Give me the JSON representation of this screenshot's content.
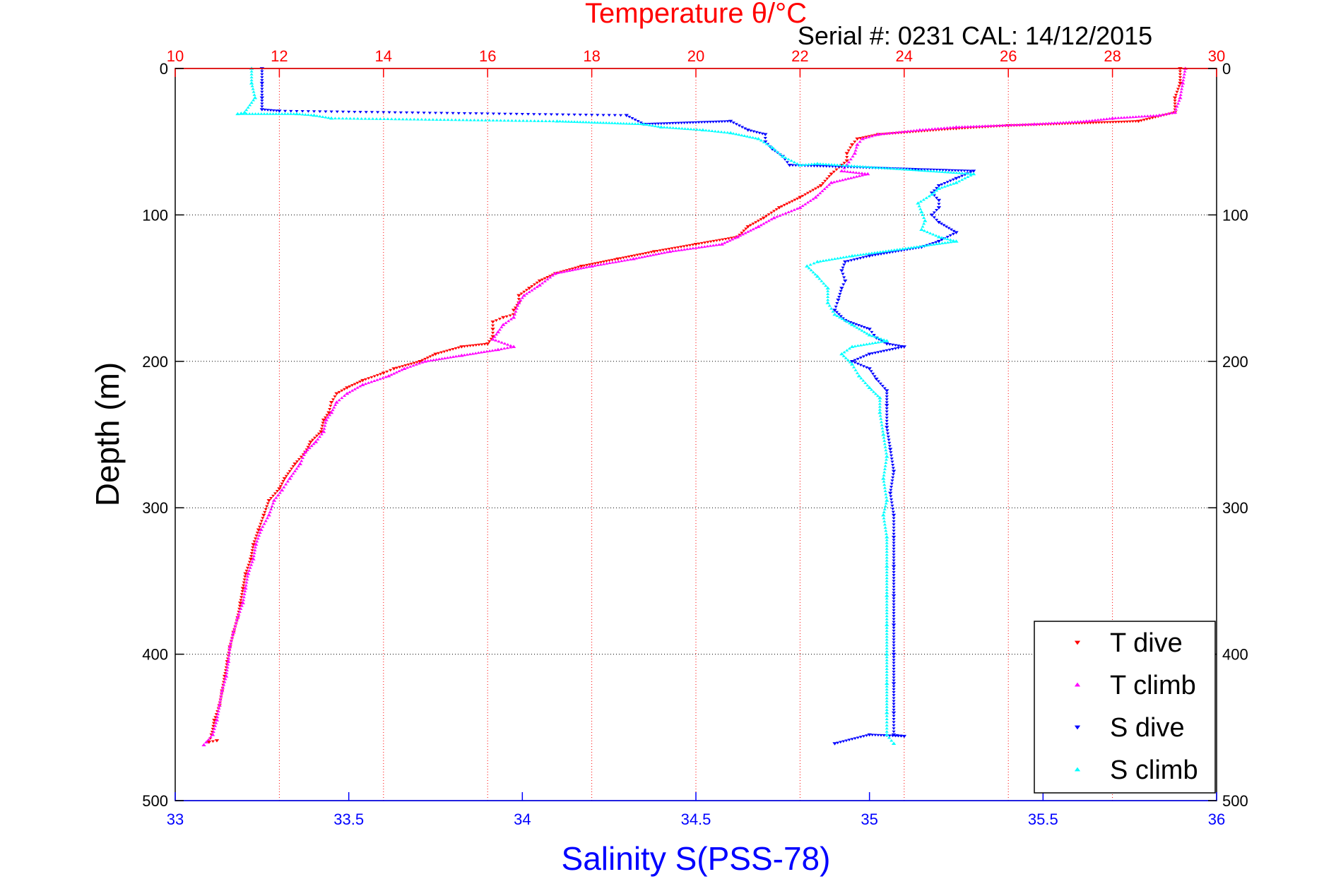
{
  "chart_data": {
    "type": "scatter",
    "title": "Temperature θ/°C",
    "subtitle": "Serial #: 0231  CAL: 14/12/2015",
    "xlabel": "Salinity S(PSS-78)",
    "ylabel": "Depth (m)",
    "legend_position": "bottom-right",
    "grid": true,
    "xlim": [
      33,
      36
    ],
    "x2lim": [
      10,
      30
    ],
    "ylim": [
      0,
      500
    ],
    "x_ticks": [
      "33",
      "33.5",
      "34",
      "34.5",
      "35",
      "35.5",
      "36"
    ],
    "x2_ticks": [
      "10",
      "12",
      "14",
      "16",
      "18",
      "20",
      "22",
      "24",
      "26",
      "28",
      "30"
    ],
    "y_ticks": [
      "0",
      "100",
      "200",
      "300",
      "400",
      "500"
    ],
    "colors": {
      "temperature_axis": "#ff0000",
      "salinity_axis": "#0000ff"
    },
    "series": [
      {
        "name": "T dive",
        "axis": "temperature",
        "color": "#ff0000",
        "marker": "triangle-down",
        "points": [
          [
            29.3,
            0
          ],
          [
            29.3,
            10
          ],
          [
            29.2,
            20
          ],
          [
            29.2,
            30
          ],
          [
            28.5,
            36
          ],
          [
            26.0,
            39
          ],
          [
            25.0,
            41
          ],
          [
            23.5,
            45
          ],
          [
            23.1,
            48
          ],
          [
            23.0,
            52
          ],
          [
            22.9,
            58
          ],
          [
            22.9,
            63
          ],
          [
            22.8,
            66
          ],
          [
            22.6,
            72
          ],
          [
            22.4,
            80
          ],
          [
            22.0,
            88
          ],
          [
            21.6,
            95
          ],
          [
            21.3,
            102
          ],
          [
            21.0,
            108
          ],
          [
            20.8,
            115
          ],
          [
            20.0,
            120
          ],
          [
            19.2,
            125
          ],
          [
            18.5,
            130
          ],
          [
            17.8,
            135
          ],
          [
            17.3,
            140
          ],
          [
            17.0,
            145
          ],
          [
            16.8,
            150
          ],
          [
            16.6,
            155
          ],
          [
            16.6,
            160
          ],
          [
            16.5,
            165
          ],
          [
            16.5,
            168
          ],
          [
            16.3,
            170
          ],
          [
            16.1,
            173
          ],
          [
            16.1,
            178
          ],
          [
            16.1,
            183
          ],
          [
            16.0,
            188
          ],
          [
            15.5,
            190
          ],
          [
            15.0,
            195
          ],
          [
            14.7,
            200
          ],
          [
            14.2,
            205
          ],
          [
            14.0,
            208
          ],
          [
            13.6,
            213
          ],
          [
            13.3,
            218
          ],
          [
            13.1,
            222
          ],
          [
            13.0,
            228
          ],
          [
            12.95,
            235
          ],
          [
            12.85,
            240
          ],
          [
            12.8,
            248
          ],
          [
            12.6,
            255
          ],
          [
            12.5,
            262
          ],
          [
            12.3,
            270
          ],
          [
            12.1,
            280
          ],
          [
            12.0,
            287
          ],
          [
            11.8,
            295
          ],
          [
            11.7,
            305
          ],
          [
            11.6,
            315
          ],
          [
            11.5,
            325
          ],
          [
            11.45,
            335
          ],
          [
            11.35,
            345
          ],
          [
            11.3,
            355
          ],
          [
            11.25,
            365
          ],
          [
            11.2,
            375
          ],
          [
            11.12,
            385
          ],
          [
            11.05,
            395
          ],
          [
            11.0,
            405
          ],
          [
            10.95,
            415
          ],
          [
            10.9,
            425
          ],
          [
            10.85,
            435
          ],
          [
            10.75,
            445
          ],
          [
            10.7,
            455
          ],
          [
            10.65,
            460
          ],
          [
            10.8,
            459
          ]
        ]
      },
      {
        "name": "T climb",
        "axis": "temperature",
        "color": "#ff00ff",
        "marker": "triangle-up",
        "points": [
          [
            29.4,
            0
          ],
          [
            29.35,
            10
          ],
          [
            29.3,
            20
          ],
          [
            29.2,
            30
          ],
          [
            28.9,
            32
          ],
          [
            28.0,
            34
          ],
          [
            27.5,
            36
          ],
          [
            26.5,
            38
          ],
          [
            25.0,
            40
          ],
          [
            24.3,
            42
          ],
          [
            23.5,
            45
          ],
          [
            23.2,
            48
          ],
          [
            23.1,
            52
          ],
          [
            23.05,
            58
          ],
          [
            22.9,
            66
          ],
          [
            22.8,
            70
          ],
          [
            23.3,
            72
          ],
          [
            22.6,
            78
          ],
          [
            22.3,
            88
          ],
          [
            22.0,
            95
          ],
          [
            21.5,
            102
          ],
          [
            21.2,
            108
          ],
          [
            20.8,
            115
          ],
          [
            20.5,
            120
          ],
          [
            19.5,
            125
          ],
          [
            18.8,
            130
          ],
          [
            18.0,
            135
          ],
          [
            17.3,
            140
          ],
          [
            17.0,
            148
          ],
          [
            16.7,
            155
          ],
          [
            16.6,
            160
          ],
          [
            16.5,
            170
          ],
          [
            16.3,
            175
          ],
          [
            16.2,
            180
          ],
          [
            16.1,
            185
          ],
          [
            16.5,
            190
          ],
          [
            16.2,
            192
          ],
          [
            15.5,
            196
          ],
          [
            14.8,
            200
          ],
          [
            14.4,
            205
          ],
          [
            14.1,
            210
          ],
          [
            13.6,
            216
          ],
          [
            13.3,
            222
          ],
          [
            13.1,
            228
          ],
          [
            13.0,
            235
          ],
          [
            12.9,
            240
          ],
          [
            12.85,
            248
          ],
          [
            12.7,
            255
          ],
          [
            12.5,
            262
          ],
          [
            12.4,
            270
          ],
          [
            12.2,
            280
          ],
          [
            12.05,
            288
          ],
          [
            11.9,
            295
          ],
          [
            11.8,
            305
          ],
          [
            11.65,
            315
          ],
          [
            11.55,
            325
          ],
          [
            11.5,
            335
          ],
          [
            11.4,
            345
          ],
          [
            11.35,
            355
          ],
          [
            11.3,
            365
          ],
          [
            11.2,
            375
          ],
          [
            11.12,
            385
          ],
          [
            11.05,
            395
          ],
          [
            11.02,
            405
          ],
          [
            10.98,
            415
          ],
          [
            10.9,
            425
          ],
          [
            10.85,
            435
          ],
          [
            10.8,
            445
          ],
          [
            10.72,
            455
          ],
          [
            10.6,
            460
          ],
          [
            10.55,
            462
          ]
        ]
      },
      {
        "name": "S dive",
        "axis": "salinity",
        "color": "#0000ff",
        "marker": "triangle-down",
        "points": [
          [
            33.25,
            0
          ],
          [
            33.25,
            10
          ],
          [
            33.25,
            20
          ],
          [
            33.25,
            28
          ],
          [
            33.3,
            29
          ],
          [
            34.3,
            32
          ],
          [
            34.35,
            38
          ],
          [
            34.6,
            36
          ],
          [
            34.65,
            42
          ],
          [
            34.7,
            45
          ],
          [
            34.7,
            50
          ],
          [
            34.72,
            55
          ],
          [
            34.75,
            60
          ],
          [
            34.77,
            66
          ],
          [
            35.3,
            70
          ],
          [
            35.25,
            75
          ],
          [
            35.2,
            80
          ],
          [
            35.18,
            85
          ],
          [
            35.2,
            90
          ],
          [
            35.2,
            95
          ],
          [
            35.18,
            100
          ],
          [
            35.2,
            105
          ],
          [
            35.25,
            112
          ],
          [
            35.2,
            118
          ],
          [
            35.15,
            122
          ],
          [
            35.0,
            128
          ],
          [
            34.93,
            132
          ],
          [
            34.92,
            138
          ],
          [
            34.93,
            145
          ],
          [
            34.92,
            150
          ],
          [
            34.91,
            158
          ],
          [
            34.9,
            165
          ],
          [
            34.93,
            172
          ],
          [
            35.0,
            178
          ],
          [
            35.02,
            184
          ],
          [
            35.05,
            188
          ],
          [
            35.1,
            190
          ],
          [
            35.0,
            195
          ],
          [
            34.95,
            200
          ],
          [
            35.0,
            205
          ],
          [
            35.02,
            212
          ],
          [
            35.05,
            220
          ],
          [
            35.05,
            230
          ],
          [
            35.05,
            245
          ],
          [
            35.06,
            260
          ],
          [
            35.07,
            275
          ],
          [
            35.06,
            290
          ],
          [
            35.07,
            305
          ],
          [
            35.07,
            320
          ],
          [
            35.07,
            340
          ],
          [
            35.07,
            360
          ],
          [
            35.07,
            380
          ],
          [
            35.07,
            400
          ],
          [
            35.07,
            420
          ],
          [
            35.07,
            440
          ],
          [
            35.07,
            455
          ],
          [
            35.1,
            456
          ],
          [
            35.0,
            455
          ],
          [
            34.9,
            461
          ]
        ]
      },
      {
        "name": "S climb",
        "axis": "salinity",
        "color": "#00ffff",
        "marker": "triangle-up",
        "points": [
          [
            33.22,
            0
          ],
          [
            33.22,
            10
          ],
          [
            33.23,
            20
          ],
          [
            33.2,
            30
          ],
          [
            33.18,
            31
          ],
          [
            33.35,
            31
          ],
          [
            33.4,
            32
          ],
          [
            33.45,
            34
          ],
          [
            34.1,
            36
          ],
          [
            34.35,
            38
          ],
          [
            34.4,
            40
          ],
          [
            34.52,
            42
          ],
          [
            34.6,
            44
          ],
          [
            34.68,
            48
          ],
          [
            34.72,
            54
          ],
          [
            34.75,
            60
          ],
          [
            34.8,
            66
          ],
          [
            34.85,
            65
          ],
          [
            35.3,
            72
          ],
          [
            35.25,
            78
          ],
          [
            35.2,
            82
          ],
          [
            35.18,
            86
          ],
          [
            35.14,
            92
          ],
          [
            35.15,
            98
          ],
          [
            35.16,
            104
          ],
          [
            35.15,
            110
          ],
          [
            35.2,
            115
          ],
          [
            35.25,
            118
          ],
          [
            34.95,
            128
          ],
          [
            34.85,
            132
          ],
          [
            34.82,
            135
          ],
          [
            34.85,
            142
          ],
          [
            34.88,
            150
          ],
          [
            34.88,
            160
          ],
          [
            34.9,
            168
          ],
          [
            34.95,
            175
          ],
          [
            35.0,
            182
          ],
          [
            35.05,
            186
          ],
          [
            34.95,
            190
          ],
          [
            34.92,
            195
          ],
          [
            34.95,
            202
          ],
          [
            34.97,
            210
          ],
          [
            35.0,
            218
          ],
          [
            35.03,
            225
          ],
          [
            35.03,
            235
          ],
          [
            35.04,
            250
          ],
          [
            35.05,
            265
          ],
          [
            35.04,
            280
          ],
          [
            35.05,
            295
          ],
          [
            35.04,
            305
          ],
          [
            35.05,
            320
          ],
          [
            35.05,
            340
          ],
          [
            35.05,
            360
          ],
          [
            35.05,
            380
          ],
          [
            35.05,
            400
          ],
          [
            35.05,
            420
          ],
          [
            35.05,
            440
          ],
          [
            35.05,
            455
          ],
          [
            35.07,
            461
          ]
        ]
      }
    ]
  }
}
